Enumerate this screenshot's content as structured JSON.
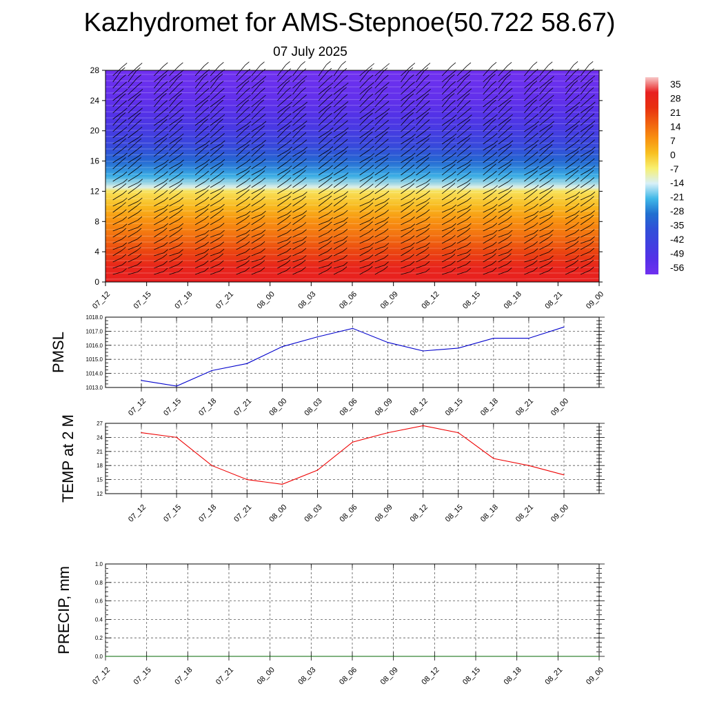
{
  "header": {
    "title": "Kazhydromet for AMS-Stepnoe(50.722 58.67)",
    "date": "07 July 2025"
  },
  "chart_data": [
    {
      "type": "heatmap",
      "title": "",
      "xlabel": "",
      "ylabel": "",
      "x_ticks": [
        "07_12",
        "07_15",
        "07_18",
        "07_21",
        "08_00",
        "08_03",
        "08_06",
        "08_09",
        "08_12",
        "08_15",
        "08_18",
        "08_21",
        "09_00"
      ],
      "y_ticks": [
        0,
        4,
        8,
        12,
        16,
        20,
        24,
        28
      ],
      "ylim": [
        0,
        28
      ],
      "colorbar": {
        "labels": [
          35,
          28,
          21,
          14,
          7,
          0,
          -7,
          -14,
          -21,
          -28,
          -35,
          -42,
          -49,
          -56
        ],
        "colors": [
          "#f8c8c8",
          "#e82020",
          "#e83010",
          "#f06010",
          "#f89010",
          "#f8c020",
          "#f8f070",
          "#d8f0f8",
          "#40b8e8",
          "#2070d0",
          "#3050d8",
          "#4040e0",
          "#5530e8",
          "#7030f0"
        ]
      },
      "profile": [
        {
          "y": 0,
          "value": 28
        },
        {
          "y": 2,
          "value": 26
        },
        {
          "y": 4,
          "value": 18
        },
        {
          "y": 6,
          "value": 12
        },
        {
          "y": 8,
          "value": 7
        },
        {
          "y": 10,
          "value": 1
        },
        {
          "y": 12,
          "value": -5
        },
        {
          "y": 12.5,
          "value": -13
        },
        {
          "y": 14,
          "value": -22
        },
        {
          "y": 16,
          "value": -30
        },
        {
          "y": 18,
          "value": -38
        },
        {
          "y": 20,
          "value": -44
        },
        {
          "y": 22,
          "value": -48
        },
        {
          "y": 24,
          "value": -52
        },
        {
          "y": 28,
          "value": -58
        }
      ],
      "wind_barbs": "present"
    },
    {
      "type": "line",
      "ylabel": "PMSL",
      "x": [
        "07_12",
        "07_15",
        "07_18",
        "07_21",
        "08_00",
        "08_03",
        "08_06",
        "08_09",
        "08_12",
        "08_15",
        "08_18",
        "08_21",
        "09_00"
      ],
      "series": [
        {
          "values": [
            1013.5,
            1013.1,
            1014.2,
            1014.7,
            1015.9,
            1016.6,
            1017.2,
            1016.2,
            1015.6,
            1015.8,
            1016.5,
            1016.5,
            1017.3
          ],
          "color": "#0000cc"
        }
      ],
      "ylim": [
        1013.0,
        1018.0
      ],
      "y_ticks": [
        "1013.0",
        "1014.0",
        "1015.0",
        "1016.0",
        "1017.0",
        "1018.0"
      ],
      "grid": true
    },
    {
      "type": "line",
      "ylabel": "TEMP at 2 M",
      "x": [
        "07_12",
        "07_15",
        "07_18",
        "07_21",
        "08_00",
        "08_03",
        "08_06",
        "08_09",
        "08_12",
        "08_15",
        "08_18",
        "08_21",
        "09_00"
      ],
      "series": [
        {
          "values": [
            25,
            24,
            18,
            15,
            14,
            17,
            23,
            25,
            26.5,
            25,
            19.5,
            18,
            16
          ],
          "color": "#ee0000"
        }
      ],
      "ylim": [
        12,
        27
      ],
      "y_ticks": [
        "12",
        "15",
        "18",
        "21",
        "24",
        "27"
      ],
      "grid": true
    },
    {
      "type": "line",
      "ylabel": "PRECIP, mm",
      "x": [
        "07_12",
        "07_15",
        "07_18",
        "07_21",
        "08_00",
        "08_03",
        "08_06",
        "08_09",
        "08_12",
        "08_15",
        "08_18",
        "08_21",
        "09_00"
      ],
      "series": [
        {
          "values": [
            0,
            0,
            0,
            0,
            0,
            0,
            0,
            0,
            0,
            0,
            0,
            0,
            0
          ],
          "color": "#006600"
        }
      ],
      "ylim": [
        0,
        1
      ],
      "y_ticks": [
        "0.0",
        "0.2",
        "0.4",
        "0.6",
        "0.8",
        "1.0"
      ],
      "grid": true
    }
  ]
}
